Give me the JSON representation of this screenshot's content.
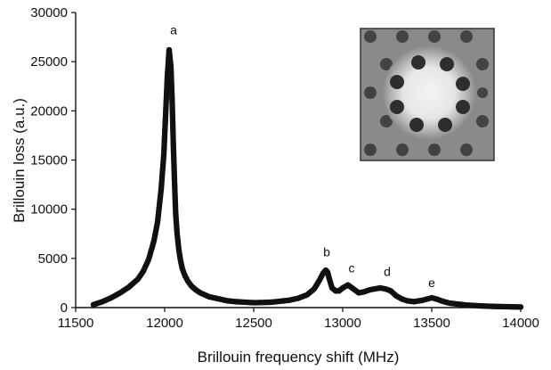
{
  "chart_data": {
    "type": "scatter",
    "title": "",
    "xlabel": "Brillouin frequency shift (MHz)",
    "ylabel": "Brillouin loss (a.u.)",
    "xlim": [
      11500,
      14000
    ],
    "ylim": [
      0,
      30000
    ],
    "xticks": [
      "11500",
      "12000",
      "12500",
      "13000",
      "13500",
      "14000"
    ],
    "yticks": [
      "0",
      "5000",
      "10000",
      "15000",
      "20000",
      "25000",
      "30000"
    ],
    "grid": false,
    "legend": "none",
    "marker_color": "#111111",
    "series": [
      {
        "x": [
          11600,
          11650,
          11700,
          11750,
          11800,
          11850,
          11880,
          11910,
          11940,
          11960,
          11980,
          11995,
          12005,
          12015,
          12025,
          12035,
          12042,
          12048,
          12055,
          12062,
          12070,
          12080,
          12090,
          12100,
          12115,
          12130,
          12150,
          12175,
          12200,
          12250,
          12300,
          12350,
          12400,
          12450,
          12500,
          12550,
          12600,
          12650,
          12700,
          12750,
          12800,
          12840,
          12870,
          12890,
          12905,
          12915,
          12925,
          12940,
          12960,
          12980,
          13000,
          13030,
          13060,
          13090,
          13120,
          13150,
          13180,
          13210,
          13240,
          13270,
          13300,
          13330,
          13360,
          13400,
          13450,
          13500,
          13530,
          13560,
          13600,
          13650,
          13700,
          13750,
          13800,
          13850,
          13900,
          13950,
          14000
        ],
        "values": [
          300,
          600,
          1000,
          1500,
          2100,
          2900,
          3700,
          4900,
          6800,
          8700,
          12000,
          15500,
          19500,
          23500,
          26200,
          24500,
          21000,
          17000,
          13000,
          9500,
          7500,
          5800,
          4700,
          3900,
          3200,
          2700,
          2200,
          1800,
          1500,
          1100,
          900,
          700,
          600,
          550,
          500,
          520,
          550,
          650,
          750,
          950,
          1300,
          1900,
          2800,
          3500,
          3800,
          3600,
          2900,
          2000,
          1700,
          1700,
          2000,
          2300,
          1900,
          1500,
          1600,
          1800,
          1900,
          2000,
          1900,
          1700,
          1200,
          900,
          700,
          600,
          750,
          1000,
          850,
          650,
          450,
          350,
          250,
          200,
          150,
          120,
          100,
          80,
          60
        ]
      }
    ],
    "annotations": [
      {
        "text": "a",
        "x": 12050,
        "y": 27800
      },
      {
        "text": "b",
        "x": 12910,
        "y": 5200
      },
      {
        "text": "c",
        "x": 13050,
        "y": 3600
      },
      {
        "text": "d",
        "x": 13250,
        "y": 3200
      },
      {
        "text": "e",
        "x": 13500,
        "y": 2100
      }
    ],
    "inset": {
      "type": "image",
      "description_icon": "fiber-cross-section-micrograph"
    }
  }
}
